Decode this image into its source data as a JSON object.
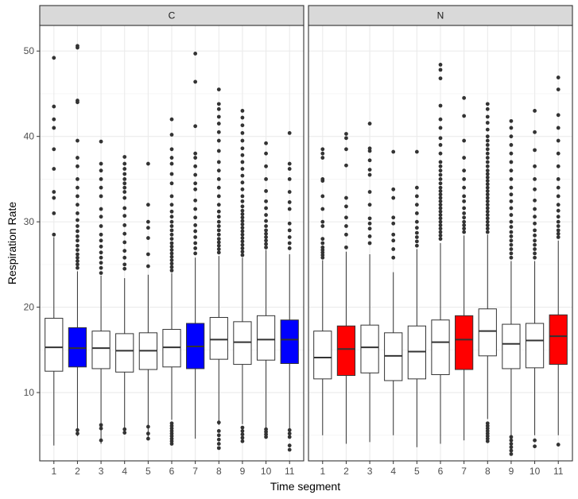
{
  "chart_data": {
    "type": "boxplot",
    "xlabel": "Time segment",
    "ylabel": "Respiration Rate",
    "ylim": [
      2,
      53
    ],
    "yticks": [
      10,
      20,
      30,
      40,
      50
    ],
    "categories": [
      "1",
      "2",
      "3",
      "4",
      "5",
      "6",
      "7",
      "8",
      "9",
      "10",
      "11"
    ],
    "grid": true,
    "legend": "none",
    "colors": {
      "highlight_C": "#0000ff",
      "highlight_N": "#ff0000",
      "default": "#ffffff",
      "outline": "#333333"
    },
    "panels": [
      {
        "strip": "C",
        "highlight_color": "#0000ff",
        "boxes": [
          {
            "x": "1",
            "whisker_low": 3.8,
            "q1": 12.5,
            "median": 15.3,
            "q3": 18.7,
            "whisker_high": 28.2,
            "outliers": [
              28.5,
              31,
              32.8,
              33.5,
              36.2,
              38.5,
              41,
              42,
              43.5,
              49.2
            ],
            "highlight": false
          },
          {
            "x": "2",
            "whisker_low": 4.9,
            "q1": 13,
            "median": 15.2,
            "q3": 17.6,
            "whisker_high": 24.2,
            "outliers": [
              5.2,
              5.6,
              24.6,
              25,
              25.4,
              25.8,
              26.2,
              26.7,
              27.2,
              27.8,
              28.3,
              28.9,
              29.5,
              30.2,
              31,
              32,
              33,
              34,
              35,
              36.5,
              37.5,
              39.5,
              44,
              44.2,
              50.4,
              50.6
            ],
            "highlight": true
          },
          {
            "x": "3",
            "whisker_low": 4,
            "q1": 12.8,
            "median": 15.2,
            "q3": 17.2,
            "whisker_high": 23.7,
            "outliers": [
              4.4,
              5.8,
              6.2,
              24,
              24.6,
              25.2,
              25.8,
              26.4,
              27.1,
              27.8,
              28.5,
              29.5,
              30.6,
              31.5,
              33,
              34,
              35,
              36,
              36.8,
              39.4
            ],
            "highlight": false
          },
          {
            "x": "4",
            "whisker_low": 5.2,
            "q1": 12.4,
            "median": 14.9,
            "q3": 16.9,
            "whisker_high": 23.4,
            "outliers": [
              5.3,
              5.7,
              24.5,
              25,
              25.8,
              26.6,
              27.6,
              28.6,
              29.6,
              30.7,
              31.6,
              32.8,
              33.5,
              34,
              34.5,
              35,
              35.6,
              36.2,
              36.8,
              37.6
            ],
            "highlight": false
          },
          {
            "x": "5",
            "whisker_low": 4.4,
            "q1": 12.7,
            "median": 14.9,
            "q3": 17,
            "whisker_high": 23.8,
            "outliers": [
              4.6,
              5.2,
              6,
              24.8,
              26.2,
              28.1,
              29.3,
              30,
              32,
              36.8
            ],
            "highlight": false
          },
          {
            "x": "6",
            "whisker_low": 6.8,
            "q1": 13,
            "median": 15.3,
            "q3": 17.4,
            "whisker_high": 24,
            "outliers": [
              4,
              4.3,
              4.6,
              4.9,
              5.2,
              5.5,
              5.8,
              6.1,
              6.4,
              24.3,
              24.7,
              25.1,
              25.5,
              25.9,
              26.3,
              26.7,
              27.1,
              27.5,
              28,
              28.5,
              29,
              29.5,
              30,
              30.6,
              31.2,
              32,
              33,
              34.5,
              35.6,
              36.8,
              37.5,
              38.5,
              40.2,
              42
            ],
            "highlight": false
          },
          {
            "x": "7",
            "whisker_low": 4.6,
            "q1": 12.8,
            "median": 15.4,
            "q3": 18.1,
            "whisker_high": 25.8,
            "outliers": [
              26.3,
              26.9,
              27.5,
              28.2,
              28.9,
              29.6,
              30.5,
              31.5,
              32.5,
              33.8,
              34.5,
              35.5,
              36.5,
              37.5,
              38,
              41.2,
              46.4,
              49.7
            ],
            "highlight": true
          },
          {
            "x": "8",
            "whisker_low": 6.2,
            "q1": 13.9,
            "median": 16.2,
            "q3": 18.8,
            "whisker_high": 26,
            "outliers": [
              3.5,
              4,
              4.5,
              5,
              5.5,
              6.5,
              26.4,
              26.8,
              27.2,
              27.6,
              28,
              28.5,
              29,
              29.5,
              30,
              30.6,
              31.2,
              32,
              33,
              34,
              35,
              36,
              37,
              38.3,
              39.5,
              40.5,
              41.5,
              42.3,
              43.2,
              43.8,
              45.5
            ],
            "highlight": false
          },
          {
            "x": "9",
            "whisker_low": 6.3,
            "q1": 13.3,
            "median": 15.9,
            "q3": 18.3,
            "whisker_high": 25.8,
            "outliers": [
              4.3,
              4.7,
              5.1,
              5.5,
              5.9,
              26.1,
              26.5,
              26.9,
              27.3,
              27.7,
              28.1,
              28.5,
              28.9,
              29.3,
              29.7,
              30.1,
              30.5,
              30.9,
              31.3,
              31.8,
              32.4,
              33,
              33.8,
              34.6,
              35.4,
              36.2,
              37,
              37.8,
              38.6,
              39.5,
              40.4,
              41.3,
              42.2,
              43
            ],
            "highlight": false
          },
          {
            "x": "10",
            "whisker_low": 5.8,
            "q1": 13.8,
            "median": 16.2,
            "q3": 19,
            "whisker_high": 26.7,
            "outliers": [
              4.8,
              5.1,
              5.4,
              5.7,
              27,
              27.4,
              27.8,
              28.2,
              28.6,
              29,
              29.5,
              30.1,
              30.8,
              31.6,
              32.4,
              33.6,
              35,
              36.5,
              38,
              39.2
            ],
            "highlight": false
          },
          {
            "x": "11",
            "whisker_low": 5.8,
            "q1": 13.4,
            "median": 16.2,
            "q3": 18.5,
            "whisker_high": 26.2,
            "outliers": [
              3.3,
              3.8,
              4.8,
              5.2,
              5.6,
              26.9,
              27.5,
              28.2,
              29,
              29.8,
              31.5,
              32.3,
              33.5,
              35,
              36.2,
              36.8,
              40.4
            ],
            "highlight": true
          }
        ]
      },
      {
        "strip": "N",
        "highlight_color": "#ff0000",
        "boxes": [
          {
            "x": "1",
            "whisker_low": 5,
            "q1": 11.6,
            "median": 14.1,
            "q3": 17.2,
            "whisker_high": 25.5,
            "outliers": [
              25.8,
              26.1,
              26.4,
              26.7,
              27,
              27.5,
              28,
              29.5,
              30,
              31.5,
              33,
              34.8,
              35,
              37.5,
              38,
              38.5
            ],
            "highlight": false
          },
          {
            "x": "2",
            "whisker_low": 4,
            "q1": 12,
            "median": 15.1,
            "q3": 17.8,
            "whisker_high": 26.5,
            "outliers": [
              27,
              28.5,
              29.5,
              30.5,
              31.8,
              32.8,
              36.6,
              38.5,
              39.8,
              40.3
            ],
            "highlight": true
          },
          {
            "x": "3",
            "whisker_low": 4.2,
            "q1": 12.3,
            "median": 15.3,
            "q3": 17.9,
            "whisker_high": 26.2,
            "outliers": [
              27.5,
              28.3,
              29.2,
              29.8,
              30.4,
              32,
              33.5,
              35.5,
              36.1,
              37.2,
              38.3,
              38.6,
              41.5
            ],
            "highlight": false
          },
          {
            "x": "4",
            "whisker_low": 5,
            "q1": 11.4,
            "median": 14.3,
            "q3": 17,
            "whisker_high": 24.1,
            "outliers": [
              25.8,
              26.8,
              27.8,
              28.5,
              29.8,
              30.5,
              32.8,
              33.8,
              38.2
            ],
            "highlight": false
          },
          {
            "x": "5",
            "whisker_low": 3.6,
            "q1": 11.6,
            "median": 14.8,
            "q3": 17.8,
            "whisker_high": 26.8,
            "outliers": [
              27.2,
              27.7,
              28.2,
              28.7,
              29.3,
              30,
              31,
              32,
              33,
              34,
              38.2
            ],
            "highlight": false
          },
          {
            "x": "6",
            "whisker_low": 4,
            "q1": 12.1,
            "median": 15.9,
            "q3": 18.5,
            "whisker_high": 27.5,
            "outliers": [
              28,
              28.4,
              28.8,
              29.2,
              29.6,
              30,
              30.4,
              30.8,
              31.2,
              31.6,
              32,
              32.4,
              32.8,
              33.2,
              33.6,
              34,
              34.5,
              35,
              35.5,
              36,
              36.5,
              37,
              38,
              39,
              39.8,
              41,
              42,
              43.6,
              46.8,
              47.8,
              48.4
            ],
            "highlight": false
          },
          {
            "x": "7",
            "whisker_low": 4.4,
            "q1": 12.7,
            "median": 16.2,
            "q3": 19,
            "whisker_high": 28.4,
            "outliers": [
              28.8,
              29.2,
              29.6,
              30,
              30.5,
              31,
              31.6,
              32.4,
              33,
              34,
              35,
              36,
              37.5,
              39.5,
              42.4,
              44.5
            ],
            "highlight": true
          },
          {
            "x": "8",
            "whisker_low": 6.9,
            "q1": 14.3,
            "median": 17.2,
            "q3": 19.8,
            "whisker_high": 28.5,
            "outliers": [
              4.3,
              4.6,
              4.9,
              5.2,
              5.5,
              5.8,
              6.1,
              6.4,
              28.8,
              29.2,
              29.6,
              30,
              30.4,
              30.8,
              31.2,
              31.6,
              32,
              32.4,
              32.8,
              33.2,
              33.6,
              34,
              34.4,
              34.8,
              35.2,
              35.6,
              36,
              36.5,
              37,
              37.5,
              38,
              38.5,
              39,
              39.5,
              40,
              40.8,
              41.6,
              42.3,
              43.2,
              43.8
            ],
            "highlight": false
          },
          {
            "x": "9",
            "whisker_low": 5,
            "q1": 12.8,
            "median": 15.7,
            "q3": 18,
            "whisker_high": 25.4,
            "outliers": [
              2.8,
              3.2,
              3.6,
              4,
              4.4,
              4.8,
              25.8,
              26.3,
              26.8,
              27.3,
              27.8,
              28.3,
              28.8,
              29.4,
              30,
              30.8,
              31.6,
              32.4,
              33.2,
              34,
              35,
              36,
              37,
              38,
              39,
              40,
              41,
              41.8
            ],
            "highlight": false
          },
          {
            "x": "10",
            "whisker_low": 5,
            "q1": 12.9,
            "median": 16.1,
            "q3": 18.1,
            "whisker_high": 25.4,
            "outliers": [
              3.7,
              4.4,
              25.8,
              26.3,
              26.8,
              27.3,
              27.8,
              28.4,
              29,
              29.8,
              30.6,
              31.5,
              32.5,
              33.8,
              35,
              36.5,
              38.4,
              40.5,
              43
            ],
            "highlight": false
          },
          {
            "x": "11",
            "whisker_low": 5,
            "q1": 13.3,
            "median": 16.6,
            "q3": 19.1,
            "whisker_high": 27.8,
            "outliers": [
              3.9,
              28.2,
              28.6,
              29,
              29.5,
              30,
              30.6,
              31.3,
              32,
              33,
              34,
              35,
              36.5,
              38,
              39.5,
              41,
              42.5,
              45.5,
              46.9
            ],
            "highlight": true
          }
        ]
      }
    ]
  }
}
